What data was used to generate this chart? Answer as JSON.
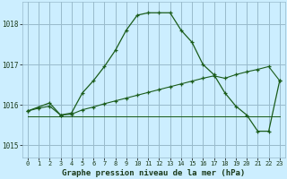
{
  "background_color": "#cceeff",
  "grid_color": "#99bbcc",
  "line_color": "#1a5c1a",
  "title": "Graphe pression niveau de la mer (hPa)",
  "xlim": [
    -0.5,
    23.5
  ],
  "ylim": [
    1014.7,
    1018.55
  ],
  "yticks": [
    1015,
    1016,
    1017,
    1018
  ],
  "xticks": [
    0,
    1,
    2,
    3,
    4,
    5,
    6,
    7,
    8,
    9,
    10,
    11,
    12,
    13,
    14,
    15,
    16,
    17,
    18,
    19,
    20,
    21,
    22,
    23
  ],
  "series1": [
    1015.85,
    1015.95,
    1016.05,
    1015.75,
    1015.8,
    1016.3,
    1016.6,
    1016.95,
    1017.35,
    1017.85,
    1018.22,
    1018.28,
    1018.28,
    1018.28,
    1017.85,
    1017.55,
    1017.0,
    1016.75,
    1016.3,
    1015.97,
    1015.75,
    1015.35,
    1015.35,
    1016.6
  ],
  "series2": [
    1015.72,
    1015.72,
    1015.72,
    1015.72,
    1015.72,
    1015.72,
    1015.72,
    1015.72,
    1015.72,
    1015.72,
    1015.72,
    1015.72,
    1015.72,
    1015.72,
    1015.72,
    1015.72,
    1015.72,
    1015.72,
    1015.72,
    1015.72,
    1015.72,
    1015.72,
    1015.72,
    1015.72
  ],
  "series3": [
    1015.72,
    1015.72,
    1015.72,
    1015.72,
    1015.72,
    1015.72,
    1015.72,
    1015.72,
    1015.72,
    1015.72,
    1015.72,
    1015.72,
    1015.72,
    1015.72,
    1015.72,
    1015.72,
    1015.72,
    1015.72,
    1015.72,
    1015.72,
    1015.72,
    1015.72,
    1015.72,
    1015.72
  ],
  "series4": [
    1015.85,
    1015.92,
    1015.97,
    1015.75,
    1015.77,
    1015.88,
    1015.95,
    1016.03,
    1016.1,
    1016.17,
    1016.24,
    1016.31,
    1016.38,
    1016.45,
    1016.52,
    1016.59,
    1016.66,
    1016.72,
    1016.66,
    1016.75,
    1016.82,
    1016.88,
    1016.95,
    1016.6
  ]
}
